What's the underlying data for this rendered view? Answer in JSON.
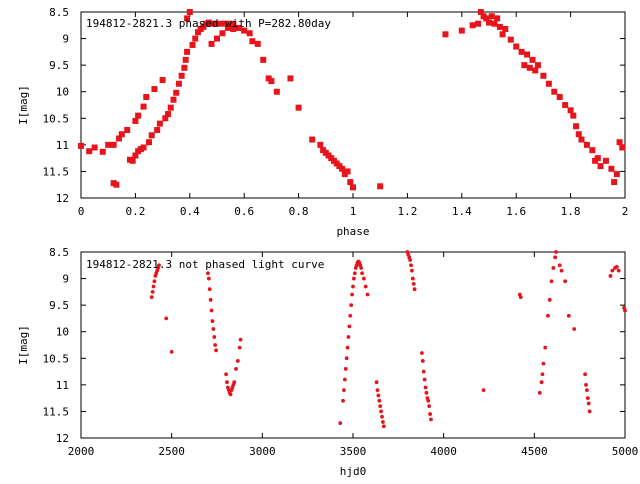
{
  "chart_data": [
    {
      "type": "scatter",
      "title": "194812-2821.3 phased with P=282.80day",
      "xlabel": "phase",
      "ylabel": "I[mag]",
      "xlim": [
        0,
        2
      ],
      "ylim": [
        12,
        8.5
      ],
      "y_inverted": true,
      "grid": false,
      "marker": "square",
      "color": "#e8141b",
      "x_ticks": [
        0,
        0.2,
        0.4,
        0.6,
        0.8,
        1,
        1.2,
        1.4,
        1.6,
        1.8,
        2
      ],
      "x_tick_labels": [
        "0",
        "0.2",
        "0.4",
        "0.6",
        "0.8",
        "1",
        "1.2",
        "1.4",
        "1.6",
        "1.8",
        "2"
      ],
      "y_ticks": [
        8.5,
        9,
        9.5,
        10,
        10.5,
        11,
        11.5,
        12
      ],
      "y_tick_labels": [
        "8.5",
        "9",
        "9.5",
        "10",
        "10.5",
        "11",
        "11.5",
        "12"
      ],
      "points": [
        [
          0.0,
          11.02
        ],
        [
          0.03,
          11.12
        ],
        [
          0.05,
          11.05
        ],
        [
          0.08,
          11.13
        ],
        [
          0.1,
          11.0
        ],
        [
          0.12,
          11.0
        ],
        [
          0.12,
          11.72
        ],
        [
          0.13,
          11.75
        ],
        [
          0.14,
          10.88
        ],
        [
          0.15,
          10.8
        ],
        [
          0.17,
          10.72
        ],
        [
          0.18,
          11.28
        ],
        [
          0.19,
          11.3
        ],
        [
          0.2,
          11.2
        ],
        [
          0.2,
          10.55
        ],
        [
          0.21,
          10.45
        ],
        [
          0.21,
          11.12
        ],
        [
          0.22,
          11.08
        ],
        [
          0.23,
          10.28
        ],
        [
          0.23,
          11.05
        ],
        [
          0.24,
          10.1
        ],
        [
          0.25,
          10.95
        ],
        [
          0.26,
          10.82
        ],
        [
          0.27,
          9.95
        ],
        [
          0.28,
          10.72
        ],
        [
          0.29,
          10.6
        ],
        [
          0.3,
          9.78
        ],
        [
          0.31,
          10.5
        ],
        [
          0.32,
          10.42
        ],
        [
          0.33,
          10.3
        ],
        [
          0.34,
          10.15
        ],
        [
          0.35,
          10.02
        ],
        [
          0.36,
          9.85
        ],
        [
          0.37,
          9.7
        ],
        [
          0.38,
          9.55
        ],
        [
          0.385,
          9.4
        ],
        [
          0.39,
          9.25
        ],
        [
          0.39,
          8.62
        ],
        [
          0.4,
          8.5
        ],
        [
          0.41,
          9.12
        ],
        [
          0.42,
          9.0
        ],
        [
          0.43,
          8.88
        ],
        [
          0.44,
          8.82
        ],
        [
          0.45,
          8.78
        ],
        [
          0.46,
          8.72
        ],
        [
          0.47,
          8.7
        ],
        [
          0.48,
          8.72
        ],
        [
          0.48,
          9.1
        ],
        [
          0.5,
          8.72
        ],
        [
          0.5,
          9.0
        ],
        [
          0.52,
          8.72
        ],
        [
          0.52,
          8.9
        ],
        [
          0.54,
          8.72
        ],
        [
          0.54,
          8.8
        ],
        [
          0.56,
          8.72
        ],
        [
          0.56,
          8.82
        ],
        [
          0.58,
          8.8
        ],
        [
          0.6,
          8.85
        ],
        [
          0.62,
          8.9
        ],
        [
          0.63,
          9.05
        ],
        [
          0.65,
          9.1
        ],
        [
          0.67,
          9.4
        ],
        [
          0.69,
          9.75
        ],
        [
          0.7,
          9.8
        ],
        [
          0.72,
          10.0
        ],
        [
          0.77,
          9.75
        ],
        [
          0.8,
          10.3
        ],
        [
          0.85,
          10.9
        ],
        [
          0.88,
          11.0
        ],
        [
          0.89,
          11.1
        ],
        [
          0.9,
          11.15
        ],
        [
          0.91,
          11.2
        ],
        [
          0.92,
          11.25
        ],
        [
          0.93,
          11.3
        ],
        [
          0.94,
          11.35
        ],
        [
          0.95,
          11.4
        ],
        [
          0.96,
          11.45
        ],
        [
          0.97,
          11.55
        ],
        [
          0.98,
          11.5
        ],
        [
          0.99,
          11.7
        ],
        [
          1.0,
          11.8
        ],
        [
          1.1,
          11.78
        ],
        [
          1.34,
          8.92
        ],
        [
          1.4,
          8.85
        ],
        [
          1.44,
          8.75
        ],
        [
          1.46,
          8.72
        ],
        [
          1.47,
          8.5
        ],
        [
          1.48,
          8.58
        ],
        [
          1.49,
          8.62
        ],
        [
          1.5,
          8.7
        ],
        [
          1.51,
          8.58
        ],
        [
          1.52,
          8.72
        ],
        [
          1.53,
          8.62
        ],
        [
          1.54,
          8.78
        ],
        [
          1.55,
          8.92
        ],
        [
          1.56,
          8.82
        ],
        [
          1.58,
          9.02
        ],
        [
          1.6,
          9.15
        ],
        [
          1.62,
          9.25
        ],
        [
          1.63,
          9.5
        ],
        [
          1.64,
          9.3
        ],
        [
          1.65,
          9.55
        ],
        [
          1.66,
          9.4
        ],
        [
          1.67,
          9.6
        ],
        [
          1.68,
          9.5
        ],
        [
          1.7,
          9.7
        ],
        [
          1.72,
          9.85
        ],
        [
          1.74,
          10.0
        ],
        [
          1.76,
          10.1
        ],
        [
          1.78,
          10.25
        ],
        [
          1.8,
          10.35
        ],
        [
          1.81,
          10.45
        ],
        [
          1.82,
          10.65
        ],
        [
          1.83,
          10.8
        ],
        [
          1.84,
          10.9
        ],
        [
          1.86,
          11.0
        ],
        [
          1.88,
          11.1
        ],
        [
          1.89,
          11.3
        ],
        [
          1.9,
          11.25
        ],
        [
          1.91,
          11.4
        ],
        [
          1.93,
          11.3
        ],
        [
          1.95,
          11.45
        ],
        [
          1.96,
          11.7
        ],
        [
          1.97,
          11.55
        ],
        [
          1.98,
          10.95
        ],
        [
          1.99,
          11.05
        ]
      ]
    },
    {
      "type": "scatter",
      "title": "194812-2821.3 not phased light curve",
      "xlabel": "hjd0",
      "ylabel": "I[mag]",
      "xlim": [
        2000,
        5000
      ],
      "ylim": [
        12,
        8.5
      ],
      "y_inverted": true,
      "grid": false,
      "marker": "dot",
      "color": "#e8141b",
      "x_ticks": [
        2000,
        2500,
        3000,
        3500,
        4000,
        4500,
        5000
      ],
      "x_tick_labels": [
        "2000",
        "2500",
        "3000",
        "3500",
        "4000",
        "4500",
        "5000"
      ],
      "y_ticks": [
        8.5,
        9,
        9.5,
        10,
        10.5,
        11,
        11.5,
        12
      ],
      "y_tick_labels": [
        "8.5",
        "9",
        "9.5",
        "10",
        "10.5",
        "11",
        "11.5",
        "12"
      ],
      "points": [
        [
          2390,
          9.35
        ],
        [
          2395,
          9.25
        ],
        [
          2400,
          9.15
        ],
        [
          2405,
          9.05
        ],
        [
          2410,
          8.95
        ],
        [
          2415,
          8.9
        ],
        [
          2420,
          8.85
        ],
        [
          2425,
          8.8
        ],
        [
          2430,
          8.75
        ],
        [
          2470,
          9.75
        ],
        [
          2500,
          10.38
        ],
        [
          2700,
          8.9
        ],
        [
          2705,
          9.0
        ],
        [
          2710,
          9.2
        ],
        [
          2715,
          9.4
        ],
        [
          2720,
          9.6
        ],
        [
          2725,
          9.8
        ],
        [
          2730,
          9.95
        ],
        [
          2735,
          10.1
        ],
        [
          2740,
          10.25
        ],
        [
          2745,
          10.35
        ],
        [
          2800,
          10.8
        ],
        [
          2805,
          10.95
        ],
        [
          2810,
          11.05
        ],
        [
          2815,
          11.1
        ],
        [
          2820,
          11.15
        ],
        [
          2825,
          11.18
        ],
        [
          2830,
          11.1
        ],
        [
          2835,
          11.05
        ],
        [
          2840,
          11.0
        ],
        [
          2845,
          10.95
        ],
        [
          2855,
          10.7
        ],
        [
          2865,
          10.55
        ],
        [
          2875,
          10.3
        ],
        [
          2880,
          10.15
        ],
        [
          3430,
          11.72
        ],
        [
          3445,
          11.3
        ],
        [
          3450,
          11.1
        ],
        [
          3455,
          10.9
        ],
        [
          3460,
          10.7
        ],
        [
          3465,
          10.5
        ],
        [
          3470,
          10.3
        ],
        [
          3475,
          10.1
        ],
        [
          3480,
          9.9
        ],
        [
          3485,
          9.7
        ],
        [
          3490,
          9.5
        ],
        [
          3495,
          9.3
        ],
        [
          3500,
          9.15
        ],
        [
          3505,
          9.0
        ],
        [
          3510,
          8.9
        ],
        [
          3515,
          8.8
        ],
        [
          3520,
          8.75
        ],
        [
          3525,
          8.7
        ],
        [
          3530,
          8.68
        ],
        [
          3535,
          8.7
        ],
        [
          3540,
          8.75
        ],
        [
          3545,
          8.8
        ],
        [
          3550,
          8.9
        ],
        [
          3560,
          9.0
        ],
        [
          3570,
          9.15
        ],
        [
          3580,
          9.3
        ],
        [
          3630,
          10.95
        ],
        [
          3635,
          11.1
        ],
        [
          3640,
          11.2
        ],
        [
          3645,
          11.3
        ],
        [
          3650,
          11.4
        ],
        [
          3655,
          11.5
        ],
        [
          3660,
          11.6
        ],
        [
          3665,
          11.7
        ],
        [
          3670,
          11.78
        ],
        [
          3800,
          8.5
        ],
        [
          3805,
          8.55
        ],
        [
          3810,
          8.6
        ],
        [
          3815,
          8.65
        ],
        [
          3820,
          8.75
        ],
        [
          3825,
          8.85
        ],
        [
          3830,
          9.0
        ],
        [
          3835,
          9.1
        ],
        [
          3840,
          9.2
        ],
        [
          3880,
          10.4
        ],
        [
          3885,
          10.55
        ],
        [
          3890,
          10.75
        ],
        [
          3895,
          10.9
        ],
        [
          3900,
          11.05
        ],
        [
          3905,
          11.15
        ],
        [
          3910,
          11.25
        ],
        [
          3915,
          11.3
        ],
        [
          3920,
          11.4
        ],
        [
          3925,
          11.55
        ],
        [
          3930,
          11.65
        ],
        [
          4220,
          11.1
        ],
        [
          4420,
          9.3
        ],
        [
          4425,
          9.35
        ],
        [
          4530,
          11.15
        ],
        [
          4540,
          10.95
        ],
        [
          4545,
          10.8
        ],
        [
          4550,
          10.6
        ],
        [
          4560,
          10.3
        ],
        [
          4575,
          9.7
        ],
        [
          4585,
          9.4
        ],
        [
          4595,
          9.05
        ],
        [
          4605,
          8.8
        ],
        [
          4615,
          8.6
        ],
        [
          4620,
          8.5
        ],
        [
          4640,
          8.75
        ],
        [
          4650,
          8.85
        ],
        [
          4670,
          9.05
        ],
        [
          4690,
          9.7
        ],
        [
          4720,
          9.95
        ],
        [
          4780,
          10.8
        ],
        [
          4785,
          11.0
        ],
        [
          4790,
          11.1
        ],
        [
          4795,
          11.25
        ],
        [
          4800,
          11.35
        ],
        [
          4805,
          11.5
        ],
        [
          4920,
          8.95
        ],
        [
          4930,
          8.85
        ],
        [
          4945,
          8.8
        ],
        [
          4955,
          8.78
        ],
        [
          4965,
          8.85
        ],
        [
          4995,
          9.55
        ],
        [
          5000,
          9.6
        ]
      ]
    }
  ]
}
